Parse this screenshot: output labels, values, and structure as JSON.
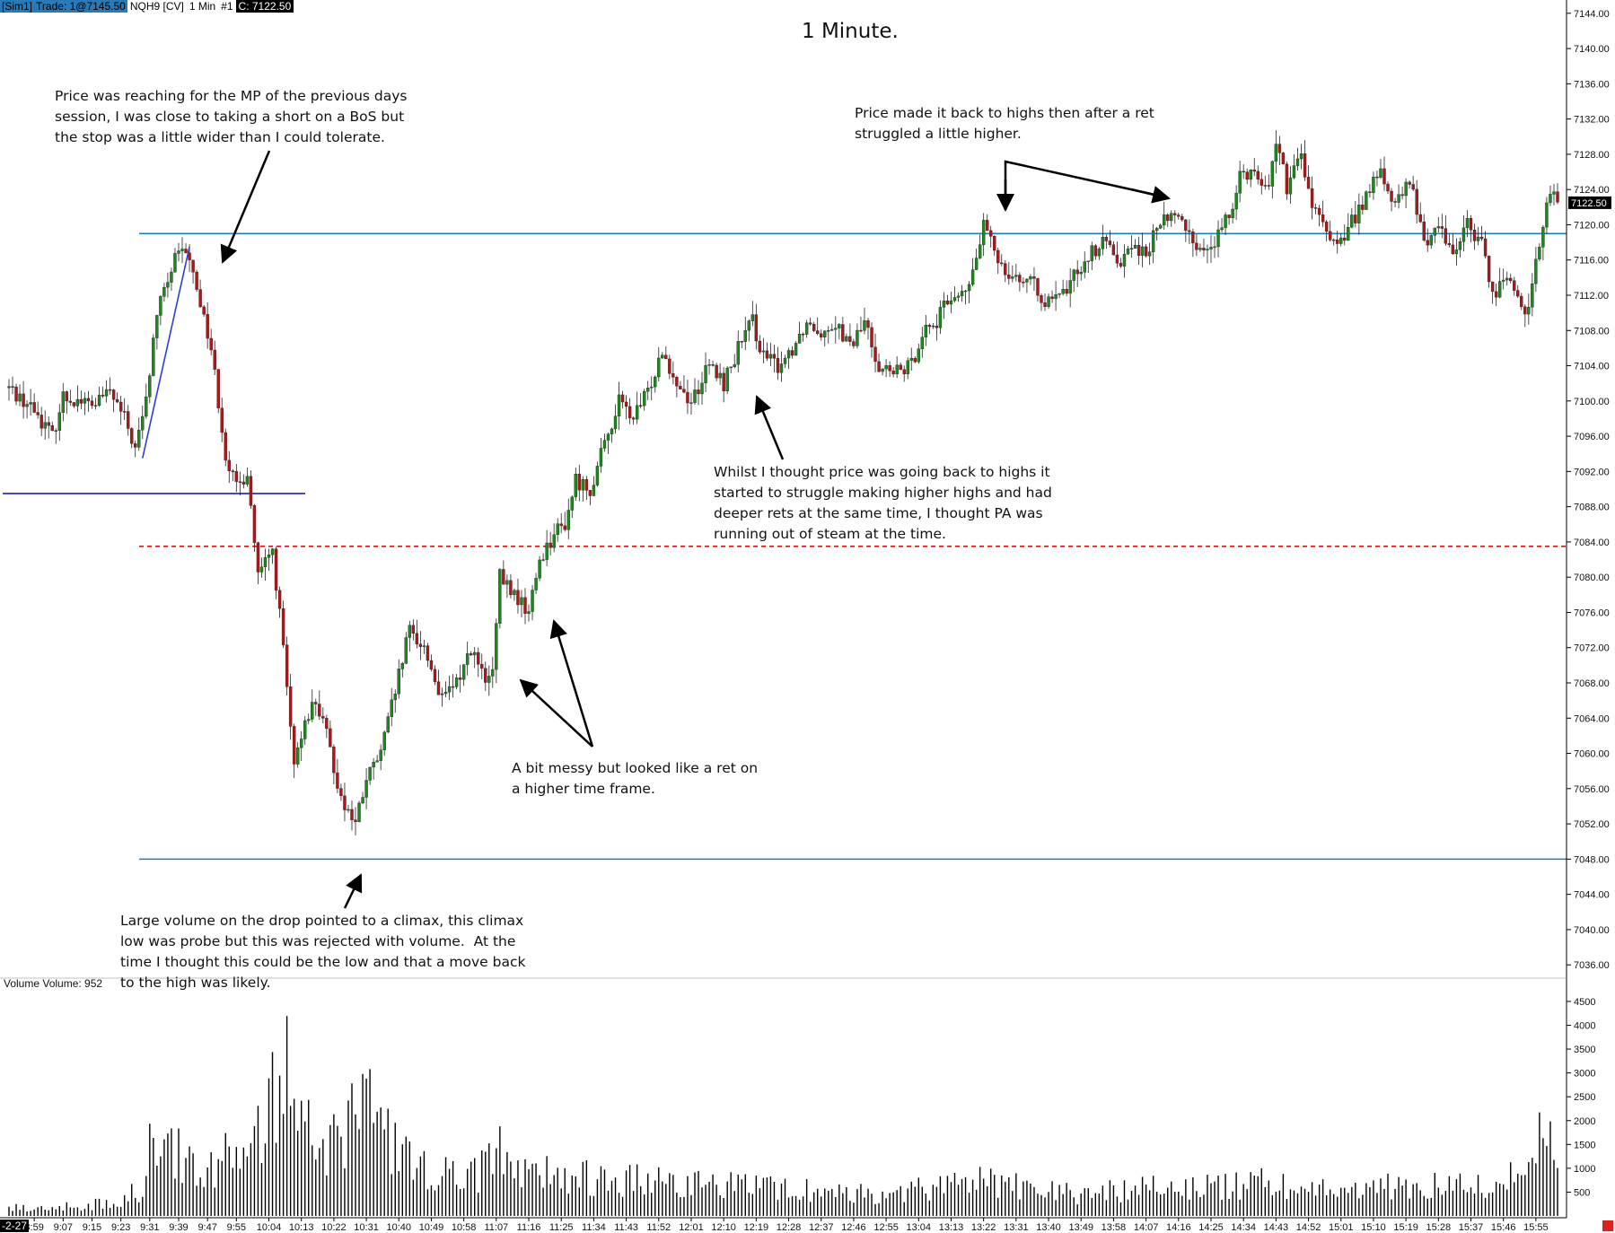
{
  "header": {
    "sim": "[Sim1]",
    "trade": "Trade: 1@7145.50",
    "instrument": "NQH9 [CV]",
    "period": "1 Min",
    "num": "#1",
    "close_label": "C: 7122.50"
  },
  "title": "1 Minute.",
  "volume_label": "Volume  Volume: 952",
  "date_tag": "-2-27",
  "annotations": {
    "note1": "Price was reaching for the MP of the previous days\nsession, I was close to taking a short on a BoS but\nthe stop was a little wider than I could tolerate.",
    "note2": "Price made it back to highs then after a ret\nstruggled a little higher.",
    "note3": "Whilst I thought price was going back to highs it\nstarted to struggle making higher highs and had\ndeeper rets at the same time, I thought PA was\nrunning out of steam at the time.",
    "note4": "A bit messy but looked like a ret on\na higher time frame.",
    "note5": "Large volume on the drop pointed to a climax, this climax\nlow was probe but this was rejected with volume.  At the\ntime I thought this could be the low and that a move back\nto the high was likely."
  },
  "colors": {
    "up": "#1a8a1a",
    "down": "#b01616",
    "hline_cyan": "#1b7fb8",
    "hline_blue": "#1a1adb",
    "hline_red": "#e01010",
    "trendline": "#2b3de0"
  },
  "chart_data": {
    "type": "candlestick",
    "title": "1 Minute.",
    "price_axis": {
      "ylim": [
        7035,
        7145
      ],
      "ticks": [
        7036,
        7040,
        7044,
        7048,
        7052,
        7056,
        7060,
        7064,
        7068,
        7072,
        7076,
        7080,
        7084,
        7088,
        7092,
        7096,
        7100,
        7104,
        7108,
        7112,
        7116,
        7120,
        7124,
        7128,
        7132,
        7136,
        7140,
        7144
      ],
      "last_price": "7122.50"
    },
    "time_axis": {
      "labels": [
        "8:59",
        "9:07",
        "9:15",
        "9:23",
        "9:31",
        "9:39",
        "9:47",
        "9:55",
        "10:04",
        "10:13",
        "10:22",
        "10:31",
        "10:40",
        "10:49",
        "10:58",
        "11:07",
        "11:16",
        "11:25",
        "11:34",
        "11:43",
        "11:52",
        "12:01",
        "12:10",
        "12:19",
        "12:28",
        "12:37",
        "12:46",
        "12:55",
        "13:04",
        "13:13",
        "13:22",
        "13:31",
        "13:40",
        "13:49",
        "13:58",
        "14:07",
        "14:16",
        "14:25",
        "14:34",
        "14:43",
        "14:52",
        "15:01",
        "15:10",
        "15:19",
        "15:28",
        "15:37",
        "15:46",
        "15:55"
      ]
    },
    "price_path": [
      [
        "8:52",
        7101.5
      ],
      [
        "8:59",
        7099
      ],
      [
        "9:04",
        7096
      ],
      [
        "9:07",
        7100.5
      ],
      [
        "9:12",
        7100
      ],
      [
        "9:15",
        7099.5
      ],
      [
        "9:20",
        7101
      ],
      [
        "9:24",
        7098
      ],
      [
        "9:27",
        7094.5
      ],
      [
        "9:30",
        7100
      ],
      [
        "9:33",
        7110
      ],
      [
        "9:38",
        7116
      ],
      [
        "9:41",
        7117
      ],
      [
        "9:44",
        7113
      ],
      [
        "9:48",
        7106
      ],
      [
        "9:52",
        7094
      ],
      [
        "9:55",
        7090
      ],
      [
        "9:58",
        7092
      ],
      [
        "10:01",
        7080
      ],
      [
        "10:05",
        7083
      ],
      [
        "10:08",
        7072
      ],
      [
        "10:11",
        7058
      ],
      [
        "10:14",
        7064
      ],
      [
        "10:17",
        7066
      ],
      [
        "10:20",
        7062
      ],
      [
        "10:24",
        7055
      ],
      [
        "10:28",
        7052
      ],
      [
        "10:31",
        7057
      ],
      [
        "10:35",
        7060
      ],
      [
        "10:39",
        7067
      ],
      [
        "10:43",
        7074
      ],
      [
        "10:47",
        7072
      ],
      [
        "10:52",
        7066
      ],
      [
        "10:56",
        7068
      ],
      [
        "11:00",
        7072
      ],
      [
        "11:04",
        7068
      ],
      [
        "11:06",
        7069
      ],
      [
        "11:08",
        7080
      ],
      [
        "11:12",
        7078
      ],
      [
        "11:16",
        7076
      ],
      [
        "11:19",
        7082
      ],
      [
        "11:23",
        7085
      ],
      [
        "11:26",
        7086
      ],
      [
        "11:29",
        7091
      ],
      [
        "11:33",
        7090
      ],
      [
        "11:37",
        7095
      ],
      [
        "11:41",
        7100
      ],
      [
        "11:45",
        7098
      ],
      [
        "11:49",
        7101
      ],
      [
        "11:53",
        7106
      ],
      [
        "11:57",
        7102
      ],
      [
        "12:01",
        7100
      ],
      [
        "12:06",
        7104
      ],
      [
        "12:10",
        7102
      ],
      [
        "12:14",
        7106
      ],
      [
        "12:18",
        7109
      ],
      [
        "12:21",
        7105
      ],
      [
        "12:25",
        7104
      ],
      [
        "12:29",
        7106
      ],
      [
        "12:33",
        7109
      ],
      [
        "12:37",
        7108
      ],
      [
        "12:41",
        7109
      ],
      [
        "12:45",
        7106
      ],
      [
        "12:49",
        7109
      ],
      [
        "12:53",
        7104
      ],
      [
        "12:57",
        7103
      ],
      [
        "13:02",
        7104
      ],
      [
        "13:05",
        7108
      ],
      [
        "13:09",
        7109
      ],
      [
        "13:13",
        7112
      ],
      [
        "13:17",
        7112
      ],
      [
        "13:20",
        7116
      ],
      [
        "13:22",
        7120
      ],
      [
        "13:25",
        7117
      ],
      [
        "13:28",
        7115
      ],
      [
        "13:32",
        7114
      ],
      [
        "13:36",
        7113
      ],
      [
        "13:40",
        7111
      ],
      [
        "13:44",
        7112
      ],
      [
        "13:48",
        7115
      ],
      [
        "13:52",
        7117
      ],
      [
        "13:56",
        7118
      ],
      [
        "14:00",
        7116
      ],
      [
        "14:04",
        7118
      ],
      [
        "14:07",
        7116
      ],
      [
        "14:10",
        7120
      ],
      [
        "14:14",
        7121
      ],
      [
        "14:18",
        7120
      ],
      [
        "14:22",
        7117
      ],
      [
        "14:26",
        7118
      ],
      [
        "14:30",
        7121
      ],
      [
        "14:33",
        7126
      ],
      [
        "14:37",
        7126
      ],
      [
        "14:41",
        7124
      ],
      [
        "14:43",
        7130
      ],
      [
        "14:46",
        7124
      ],
      [
        "14:50",
        7128
      ],
      [
        "14:53",
        7122
      ],
      [
        "14:57",
        7119
      ],
      [
        "15:01",
        7118
      ],
      [
        "15:05",
        7121
      ],
      [
        "15:09",
        7124
      ],
      [
        "15:12",
        7126
      ],
      [
        "15:16",
        7122
      ],
      [
        "15:20",
        7125
      ],
      [
        "15:24",
        7118
      ],
      [
        "15:28",
        7120
      ],
      [
        "15:32",
        7117
      ],
      [
        "15:36",
        7120
      ],
      [
        "15:40",
        7118
      ],
      [
        "15:43",
        7112
      ],
      [
        "15:46",
        7114
      ],
      [
        "15:50",
        7112
      ],
      [
        "15:53",
        7110
      ],
      [
        "15:56",
        7118
      ],
      [
        "15:58",
        7122
      ],
      [
        "16:00",
        7124
      ],
      [
        "16:01",
        7122.5
      ]
    ],
    "horizontal_lines": [
      {
        "price": 7119,
        "style": "solid",
        "color": "#1b7fb8"
      },
      {
        "price": 7089.5,
        "style": "solid",
        "color": "#1a1adb"
      },
      {
        "price": 7083.5,
        "style": "dashed",
        "color": "#e01010"
      },
      {
        "price": 7048,
        "style": "solid",
        "color": "#1b7fb8"
      }
    ],
    "trendline": [
      [
        "9:29",
        7093.5
      ],
      [
        "9:42",
        7117.5
      ]
    ],
    "volume_axis": {
      "ylim": [
        0,
        4800
      ],
      "ticks": [
        500,
        1000,
        1500,
        2000,
        2500,
        3000,
        3500,
        4000,
        4500
      ],
      "current": 952
    },
    "volume_profile": [
      [
        "8:52",
        180
      ],
      [
        "9:00",
        200
      ],
      [
        "9:10",
        220
      ],
      [
        "9:20",
        300
      ],
      [
        "9:29",
        600
      ],
      [
        "9:31",
        2900
      ],
      [
        "9:35",
        1700
      ],
      [
        "9:40",
        1400
      ],
      [
        "9:50",
        1300
      ],
      [
        "9:55",
        2000
      ],
      [
        "10:00",
        1700
      ],
      [
        "10:05",
        2600
      ],
      [
        "10:11",
        4300
      ],
      [
        "10:15",
        2200
      ],
      [
        "10:20",
        1500
      ],
      [
        "10:30",
        2600
      ],
      [
        "10:40",
        1400
      ],
      [
        "10:50",
        1000
      ],
      [
        "11:00",
        900
      ],
      [
        "11:07",
        1500
      ],
      [
        "11:16",
        1000
      ],
      [
        "11:30",
        900
      ],
      [
        "11:52",
        800
      ],
      [
        "12:10",
        700
      ],
      [
        "12:30",
        600
      ],
      [
        "12:50",
        500
      ],
      [
        "13:04",
        600
      ],
      [
        "13:15",
        800
      ],
      [
        "13:22",
        900
      ],
      [
        "13:35",
        600
      ],
      [
        "13:50",
        500
      ],
      [
        "14:07",
        700
      ],
      [
        "14:16",
        700
      ],
      [
        "14:30",
        700
      ],
      [
        "14:43",
        800
      ],
      [
        "15:00",
        600
      ],
      [
        "15:20",
        700
      ],
      [
        "15:40",
        700
      ],
      [
        "15:50",
        900
      ],
      [
        "15:55",
        1800
      ],
      [
        "15:58",
        2800
      ],
      [
        "16:01",
        1500
      ]
    ]
  }
}
